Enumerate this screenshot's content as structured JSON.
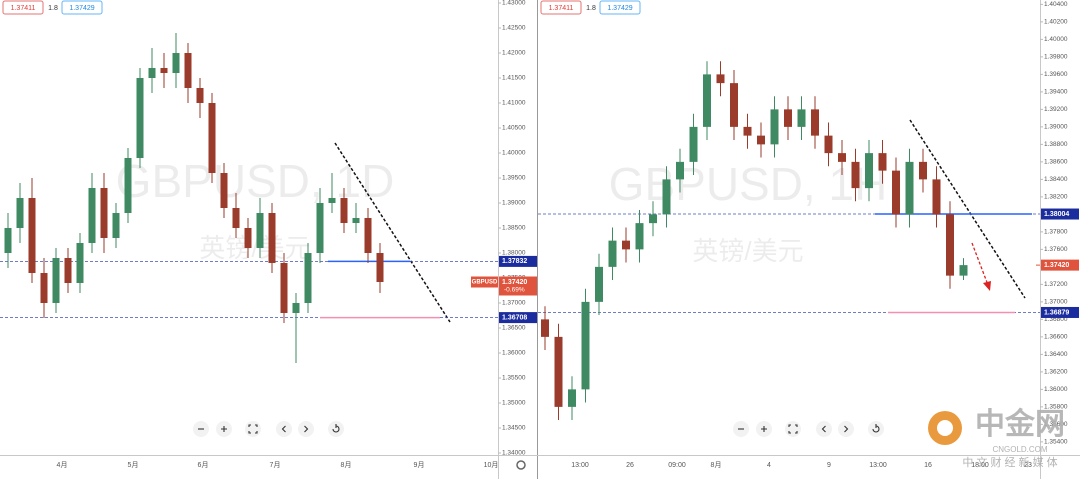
{
  "chart_data": [
    {
      "type": "candlestick",
      "symbol": "GBPUSD",
      "watermark": "GBPUSD, 1D",
      "watermark_sub": "英镑/美元",
      "bid": "1.37411",
      "spread": "1.8",
      "ask": "1.37429",
      "change": "-0.69%",
      "up_color": "#3f8a62",
      "down_color": "#9a3b2b",
      "open": [
        1.38,
        1.385,
        1.391,
        1.376,
        1.37,
        1.379,
        1.374,
        1.382,
        1.393,
        1.383,
        1.388,
        1.399,
        1.415,
        1.417,
        1.416,
        1.42,
        1.413,
        1.41,
        1.396,
        1.389,
        1.385,
        1.381,
        1.388,
        1.378,
        1.368,
        1.37,
        1.38,
        1.39,
        1.391,
        1.386,
        1.387,
        1.38
      ],
      "high": [
        1.388,
        1.394,
        1.395,
        1.379,
        1.381,
        1.381,
        1.384,
        1.396,
        1.396,
        1.39,
        1.401,
        1.417,
        1.421,
        1.42,
        1.424,
        1.422,
        1.415,
        1.412,
        1.398,
        1.392,
        1.387,
        1.391,
        1.39,
        1.38,
        1.372,
        1.382,
        1.393,
        1.396,
        1.393,
        1.39,
        1.389,
        1.382
      ],
      "low": [
        1.377,
        1.382,
        1.374,
        1.367,
        1.368,
        1.372,
        1.372,
        1.38,
        1.38,
        1.381,
        1.386,
        1.397,
        1.412,
        1.413,
        1.413,
        1.41,
        1.407,
        1.394,
        1.387,
        1.383,
        1.379,
        1.379,
        1.376,
        1.366,
        1.358,
        1.368,
        1.378,
        1.388,
        1.384,
        1.384,
        1.378,
        1.372
      ],
      "close": [
        1.385,
        1.391,
        1.376,
        1.37,
        1.379,
        1.374,
        1.382,
        1.393,
        1.383,
        1.388,
        1.399,
        1.415,
        1.417,
        1.416,
        1.42,
        1.413,
        1.41,
        1.396,
        1.389,
        1.385,
        1.381,
        1.388,
        1.378,
        1.368,
        1.37,
        1.38,
        1.39,
        1.391,
        1.386,
        1.387,
        1.38,
        1.3742
      ],
      "ylim": [
        1.34,
        1.43
      ],
      "yticks": [
        {
          "value": 1.34,
          "label": "1.34000"
        },
        {
          "value": 1.345,
          "label": "1.34500"
        },
        {
          "value": 1.35,
          "label": "1.35000"
        },
        {
          "value": 1.355,
          "label": "1.35500"
        },
        {
          "value": 1.36,
          "label": "1.36000"
        },
        {
          "value": 1.365,
          "label": "1.36500"
        },
        {
          "value": 1.37,
          "label": "1.37000"
        },
        {
          "value": 1.375,
          "label": "1.37500"
        },
        {
          "value": 1.38,
          "label": "1.38000"
        },
        {
          "value": 1.385,
          "label": "1.38500"
        },
        {
          "value": 1.39,
          "label": "1.39000"
        },
        {
          "value": 1.395,
          "label": "1.39500"
        },
        {
          "value": 1.4,
          "label": "1.40000"
        },
        {
          "value": 1.405,
          "label": "1.40500"
        },
        {
          "value": 1.41,
          "label": "1.41000"
        },
        {
          "value": 1.415,
          "label": "1.41500"
        },
        {
          "value": 1.42,
          "label": "1.42000"
        },
        {
          "value": 1.425,
          "label": "1.42500"
        },
        {
          "value": 1.43,
          "label": "1.43000"
        }
      ],
      "xlabels": [
        "4月",
        "5月",
        "6月",
        "7月",
        "8月",
        "9月",
        "10月"
      ],
      "levels": [
        {
          "value": 1.37832,
          "label": "1.37832"
        },
        {
          "value": 1.36708,
          "label": "1.36708"
        }
      ],
      "price": {
        "value": 1.3742,
        "label": "1.37420"
      }
    },
    {
      "type": "candlestick",
      "watermark": "GBPUSD, 1H",
      "watermark_sub": "英镑/美元",
      "bid": "1.37411",
      "spread": "1.8",
      "ask": "1.37429",
      "up_color": "#3f8a62",
      "down_color": "#9a3b2b",
      "open": [
        1.368,
        1.366,
        1.358,
        1.36,
        1.37,
        1.374,
        1.377,
        1.376,
        1.379,
        1.38,
        1.384,
        1.386,
        1.39,
        1.396,
        1.395,
        1.39,
        1.389,
        1.388,
        1.392,
        1.39,
        1.392,
        1.389,
        1.387,
        1.386,
        1.383,
        1.387,
        1.385,
        1.38,
        1.386,
        1.384,
        1.38,
        1.373
      ],
      "high": [
        1.3695,
        1.3675,
        1.3615,
        1.3715,
        1.3755,
        1.3785,
        1.3785,
        1.3805,
        1.3815,
        1.3855,
        1.3875,
        1.3915,
        1.3975,
        1.3975,
        1.3965,
        1.3915,
        1.3905,
        1.3935,
        1.3935,
        1.3935,
        1.3935,
        1.3905,
        1.3885,
        1.3875,
        1.3885,
        1.3885,
        1.3865,
        1.3875,
        1.3875,
        1.3855,
        1.3815,
        1.375
      ],
      "low": [
        1.3645,
        1.3565,
        1.3565,
        1.3585,
        1.3685,
        1.3725,
        1.3745,
        1.3745,
        1.3775,
        1.3785,
        1.3825,
        1.3845,
        1.3885,
        1.3935,
        1.3885,
        1.3875,
        1.3865,
        1.3865,
        1.3885,
        1.3885,
        1.3875,
        1.3855,
        1.3845,
        1.3815,
        1.3815,
        1.3835,
        1.3785,
        1.3785,
        1.3825,
        1.3785,
        1.3715,
        1.3725
      ],
      "close": [
        1.366,
        1.358,
        1.36,
        1.37,
        1.374,
        1.377,
        1.376,
        1.379,
        1.38,
        1.384,
        1.386,
        1.39,
        1.396,
        1.395,
        1.39,
        1.389,
        1.388,
        1.392,
        1.39,
        1.392,
        1.389,
        1.387,
        1.386,
        1.383,
        1.387,
        1.385,
        1.38,
        1.386,
        1.384,
        1.38,
        1.373,
        1.3742
      ],
      "ylim": [
        1.3525,
        1.4045
      ],
      "yticks": [
        {
          "value": 1.354,
          "label": "1.35400"
        },
        {
          "value": 1.356,
          "label": "1.35600"
        },
        {
          "value": 1.358,
          "label": "1.35800"
        },
        {
          "value": 1.36,
          "label": "1.36000"
        },
        {
          "value": 1.362,
          "label": "1.36200"
        },
        {
          "value": 1.364,
          "label": "1.36400"
        },
        {
          "value": 1.366,
          "label": "1.36600"
        },
        {
          "value": 1.368,
          "label": "1.36800"
        },
        {
          "value": 1.37,
          "label": "1.37000"
        },
        {
          "value": 1.372,
          "label": "1.37200"
        },
        {
          "value": 1.374,
          "label": "1.37400"
        },
        {
          "value": 1.376,
          "label": "1.37600"
        },
        {
          "value": 1.378,
          "label": "1.37800"
        },
        {
          "value": 1.38,
          "label": "1.38000"
        },
        {
          "value": 1.382,
          "label": "1.38200"
        },
        {
          "value": 1.384,
          "label": "1.38400"
        },
        {
          "value": 1.386,
          "label": "1.38600"
        },
        {
          "value": 1.388,
          "label": "1.38800"
        },
        {
          "value": 1.39,
          "label": "1.39000"
        },
        {
          "value": 1.392,
          "label": "1.39200"
        },
        {
          "value": 1.394,
          "label": "1.39400"
        },
        {
          "value": 1.396,
          "label": "1.39600"
        },
        {
          "value": 1.398,
          "label": "1.39800"
        },
        {
          "value": 1.4,
          "label": "1.40000"
        },
        {
          "value": 1.402,
          "label": "1.40200"
        },
        {
          "value": 1.404,
          "label": "1.40400"
        }
      ],
      "xlabels": [
        "13:00",
        "26",
        "09:00",
        "8月",
        "4",
        "9",
        "13:00",
        "16",
        "18:00",
        "23"
      ],
      "levels": [
        {
          "value": 1.38004,
          "label": "1.38004"
        },
        {
          "value": 1.36879,
          "label": "1.36879"
        }
      ],
      "price": {
        "value": 1.3742,
        "label": "1.37420"
      }
    }
  ],
  "logo": {
    "name": "中金网",
    "domain": "CNGOLD.COM",
    "slogan": "中 文 财 经 新 媒 体"
  }
}
